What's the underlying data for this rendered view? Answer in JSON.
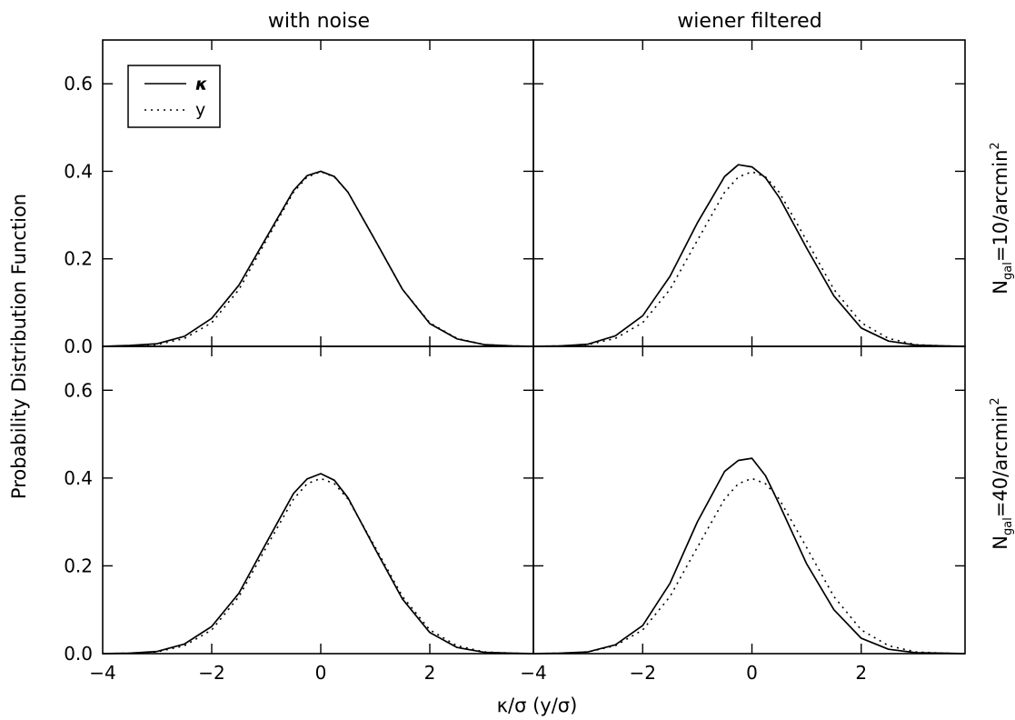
{
  "chart_data": {
    "type": "line",
    "layout": "2x2 panel grid, shared axes",
    "xlabel": "κ/σ (y/σ)",
    "ylabel": "Probability Distribution Function",
    "xlim": [
      -4,
      3.9
    ],
    "ylim": [
      0,
      0.7
    ],
    "xticks": [
      -4,
      -2,
      0,
      2
    ],
    "xtick_labels_left": [
      "−4",
      "−2",
      "0",
      "2"
    ],
    "xtick_labels_right": [
      "−4",
      "−2",
      "0",
      "2"
    ],
    "yticks": [
      0.0,
      0.2,
      0.4,
      0.6
    ],
    "ytick_labels": [
      "0.0",
      "0.2",
      "0.4",
      "0.6"
    ],
    "column_titles": [
      "with noise",
      "wiener filtered"
    ],
    "row_labels": [
      {
        "main": "N",
        "sub": "gal",
        "rest": "=10/arcmin",
        "sup": "2"
      },
      {
        "main": "N",
        "sub": "gal",
        "rest": "=40/arcmin",
        "sup": "2"
      }
    ],
    "legend": {
      "placement": "top-left of first panel",
      "entries": [
        {
          "label": "κ",
          "style": "solid"
        },
        {
          "label": "y",
          "style": "dotted"
        }
      ]
    },
    "x": [
      -4.0,
      -3.5,
      -3.0,
      -2.5,
      -2.0,
      -1.5,
      -1.0,
      -0.5,
      -0.25,
      0.0,
      0.25,
      0.5,
      1.0,
      1.5,
      2.0,
      2.5,
      3.0,
      3.5,
      3.9
    ],
    "panels": [
      {
        "row": 0,
        "col": 0,
        "series": [
          {
            "name": "κ",
            "style": "solid",
            "values": [
              0.0,
              0.002,
              0.006,
              0.023,
              0.064,
              0.14,
              0.248,
              0.356,
              0.39,
              0.4,
              0.388,
              0.352,
              0.242,
              0.13,
              0.052,
              0.017,
              0.004,
              0.001,
              0.0
            ]
          },
          {
            "name": "y",
            "style": "dotted",
            "values": [
              0.0,
              0.001,
              0.004,
              0.018,
              0.054,
              0.13,
              0.242,
              0.352,
              0.387,
              0.399,
              0.387,
              0.352,
              0.242,
              0.13,
              0.054,
              0.018,
              0.004,
              0.001,
              0.0
            ]
          }
        ]
      },
      {
        "row": 0,
        "col": 1,
        "series": [
          {
            "name": "κ",
            "style": "solid",
            "values": [
              0.0,
              0.001,
              0.005,
              0.024,
              0.07,
              0.16,
              0.282,
              0.388,
              0.415,
              0.41,
              0.385,
              0.34,
              0.225,
              0.115,
              0.042,
              0.012,
              0.003,
              0.001,
              0.0
            ]
          },
          {
            "name": "y",
            "style": "dotted",
            "values": [
              0.0,
              0.001,
              0.004,
              0.018,
              0.054,
              0.13,
              0.242,
              0.352,
              0.387,
              0.399,
              0.387,
              0.352,
              0.242,
              0.13,
              0.054,
              0.018,
              0.004,
              0.001,
              0.0
            ]
          }
        ]
      },
      {
        "row": 1,
        "col": 0,
        "series": [
          {
            "name": "κ",
            "style": "solid",
            "values": [
              0.0,
              0.001,
              0.005,
              0.022,
              0.062,
              0.138,
              0.252,
              0.365,
              0.398,
              0.41,
              0.395,
              0.355,
              0.238,
              0.124,
              0.048,
              0.014,
              0.003,
              0.001,
              0.0
            ]
          },
          {
            "name": "y",
            "style": "dotted",
            "values": [
              0.0,
              0.001,
              0.004,
              0.018,
              0.054,
              0.13,
              0.242,
              0.352,
              0.387,
              0.399,
              0.387,
              0.352,
              0.242,
              0.13,
              0.054,
              0.018,
              0.004,
              0.001,
              0.0
            ]
          }
        ]
      },
      {
        "row": 1,
        "col": 1,
        "series": [
          {
            "name": "κ",
            "style": "solid",
            "values": [
              0.0,
              0.001,
              0.004,
              0.02,
              0.064,
              0.16,
              0.3,
              0.415,
              0.44,
              0.445,
              0.405,
              0.34,
              0.205,
              0.1,
              0.035,
              0.01,
              0.002,
              0.001,
              0.0
            ]
          },
          {
            "name": "y",
            "style": "dotted",
            "values": [
              0.0,
              0.001,
              0.004,
              0.018,
              0.054,
              0.13,
              0.242,
              0.352,
              0.387,
              0.399,
              0.387,
              0.352,
              0.242,
              0.13,
              0.054,
              0.018,
              0.004,
              0.001,
              0.0
            ]
          }
        ]
      }
    ]
  }
}
